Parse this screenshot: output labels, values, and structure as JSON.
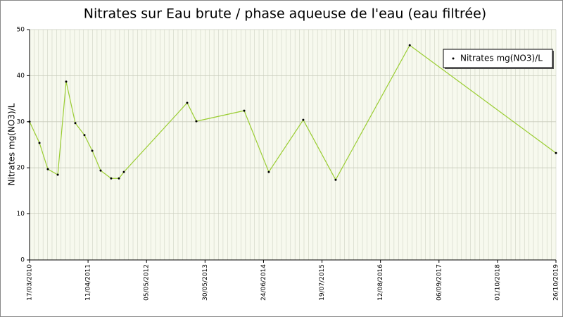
{
  "chart_data": {
    "type": "line",
    "title": "Nitrates sur Eau brute / phase aqueuse de l'eau (eau filtrée)",
    "y_label": "Nitrates mg(NO3)/L",
    "x": [
      "17/03/2010",
      "22/05/2010",
      "17/07/2010",
      "21/09/2010",
      "16/11/2010",
      "16/01/2011",
      "18/03/2011",
      "09/05/2011",
      "04/07/2011",
      "12/09/2011",
      "03/11/2011",
      "06/12/2011",
      "31/01/2013",
      "02/04/2013",
      "15/02/2014",
      "29/07/2014",
      "16/03/2015",
      "18/10/2015",
      "23/02/2017",
      "26/10/2019"
    ],
    "series": [
      {
        "name": "Nitrates mg(NO3)/L",
        "color": "#9acd32",
        "values": [
          30.0,
          25.4,
          19.7,
          18.5,
          38.7,
          29.7,
          27.1,
          23.7,
          19.4,
          17.7,
          17.7,
          19.1,
          34.1,
          30.1,
          32.4,
          19.1,
          30.4,
          17.4,
          46.6,
          23.2
        ]
      }
    ],
    "xlim": [
      "17/03/2010",
      "26/10/2019"
    ],
    "xticks": [
      "17/03/2010",
      "11/04/2011",
      "05/05/2012",
      "30/05/2013",
      "24/06/2014",
      "19/07/2015",
      "12/08/2016",
      "06/09/2017",
      "01/10/2018",
      "26/10/2019"
    ],
    "ylim": [
      0,
      50
    ],
    "yticks": [
      0,
      10,
      20,
      30,
      40,
      50
    ],
    "grid": true,
    "legend": "top-right"
  }
}
